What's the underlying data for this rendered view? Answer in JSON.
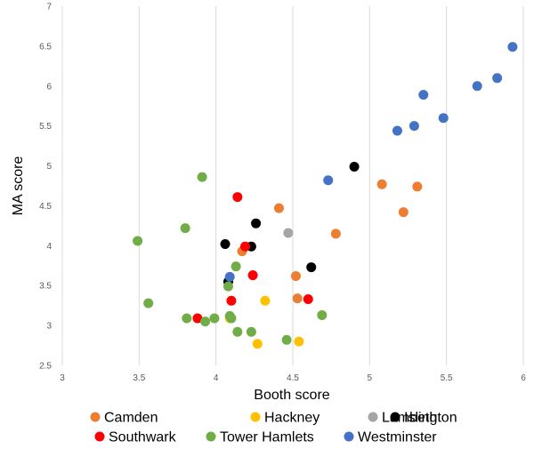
{
  "chart_data": {
    "type": "scatter",
    "title": "",
    "xlabel": "Booth score",
    "ylabel": "MA score",
    "xlim": [
      3,
      6
    ],
    "ylim": [
      2.5,
      7
    ],
    "xticks": [
      "3",
      "3.5",
      "4",
      "4.5",
      "5",
      "5.5",
      "6"
    ],
    "yticks": [
      "2.5",
      "3",
      "3.5",
      "4",
      "4.5",
      "5",
      "5.5",
      "6",
      "6.5",
      "7"
    ],
    "grid": "vertical",
    "legend_position": "bottom",
    "series": [
      {
        "name": "Camden",
        "color": "#ed7d31",
        "points": [
          [
            4.17,
            3.93
          ],
          [
            4.41,
            4.47
          ],
          [
            4.52,
            3.62
          ],
          [
            4.53,
            3.34
          ],
          [
            4.78,
            4.15
          ],
          [
            5.08,
            4.77
          ],
          [
            5.22,
            4.42
          ],
          [
            5.31,
            4.74
          ]
        ]
      },
      {
        "name": "Hackney",
        "color": "#ffc000",
        "points": [
          [
            4.09,
            3.09
          ],
          [
            4.27,
            2.77
          ],
          [
            4.32,
            3.31
          ],
          [
            4.54,
            2.8
          ]
        ]
      },
      {
        "name": "Islington",
        "color": "#000000",
        "points": [
          [
            4.06,
            4.02
          ],
          [
            4.08,
            3.55
          ],
          [
            4.23,
            3.99
          ],
          [
            4.26,
            4.28
          ],
          [
            4.62,
            3.73
          ],
          [
            4.9,
            4.99
          ]
        ]
      },
      {
        "name": "Lambeth",
        "color": "#a5a5a5",
        "points": [
          [
            4.47,
            4.16
          ]
        ]
      },
      {
        "name": "Southwark",
        "color": "#ff0000",
        "points": [
          [
            3.88,
            3.09
          ],
          [
            4.1,
            3.31
          ],
          [
            4.14,
            4.61
          ],
          [
            4.19,
            3.99
          ],
          [
            4.24,
            3.63
          ],
          [
            4.6,
            3.33
          ]
        ]
      },
      {
        "name": "Tower Hamlets",
        "color": "#70ad47",
        "points": [
          [
            3.49,
            4.06
          ],
          [
            3.56,
            3.28
          ],
          [
            3.81,
            3.09
          ],
          [
            3.8,
            4.22
          ],
          [
            3.91,
            4.86
          ],
          [
            3.93,
            3.05
          ],
          [
            3.99,
            3.09
          ],
          [
            4.08,
            3.49
          ],
          [
            4.09,
            3.12
          ],
          [
            4.1,
            3.09
          ],
          [
            4.13,
            3.74
          ],
          [
            4.14,
            2.92
          ],
          [
            4.23,
            2.92
          ],
          [
            4.46,
            2.82
          ],
          [
            4.69,
            3.13
          ]
        ]
      },
      {
        "name": "Westminster",
        "color": "#4472c4",
        "points": [
          [
            4.09,
            3.61
          ],
          [
            4.73,
            4.82
          ],
          [
            5.18,
            5.44
          ],
          [
            5.29,
            5.5
          ],
          [
            5.35,
            5.89
          ],
          [
            5.48,
            5.6
          ],
          [
            5.7,
            6.0
          ],
          [
            5.83,
            6.1
          ],
          [
            5.93,
            6.49
          ]
        ]
      }
    ]
  }
}
